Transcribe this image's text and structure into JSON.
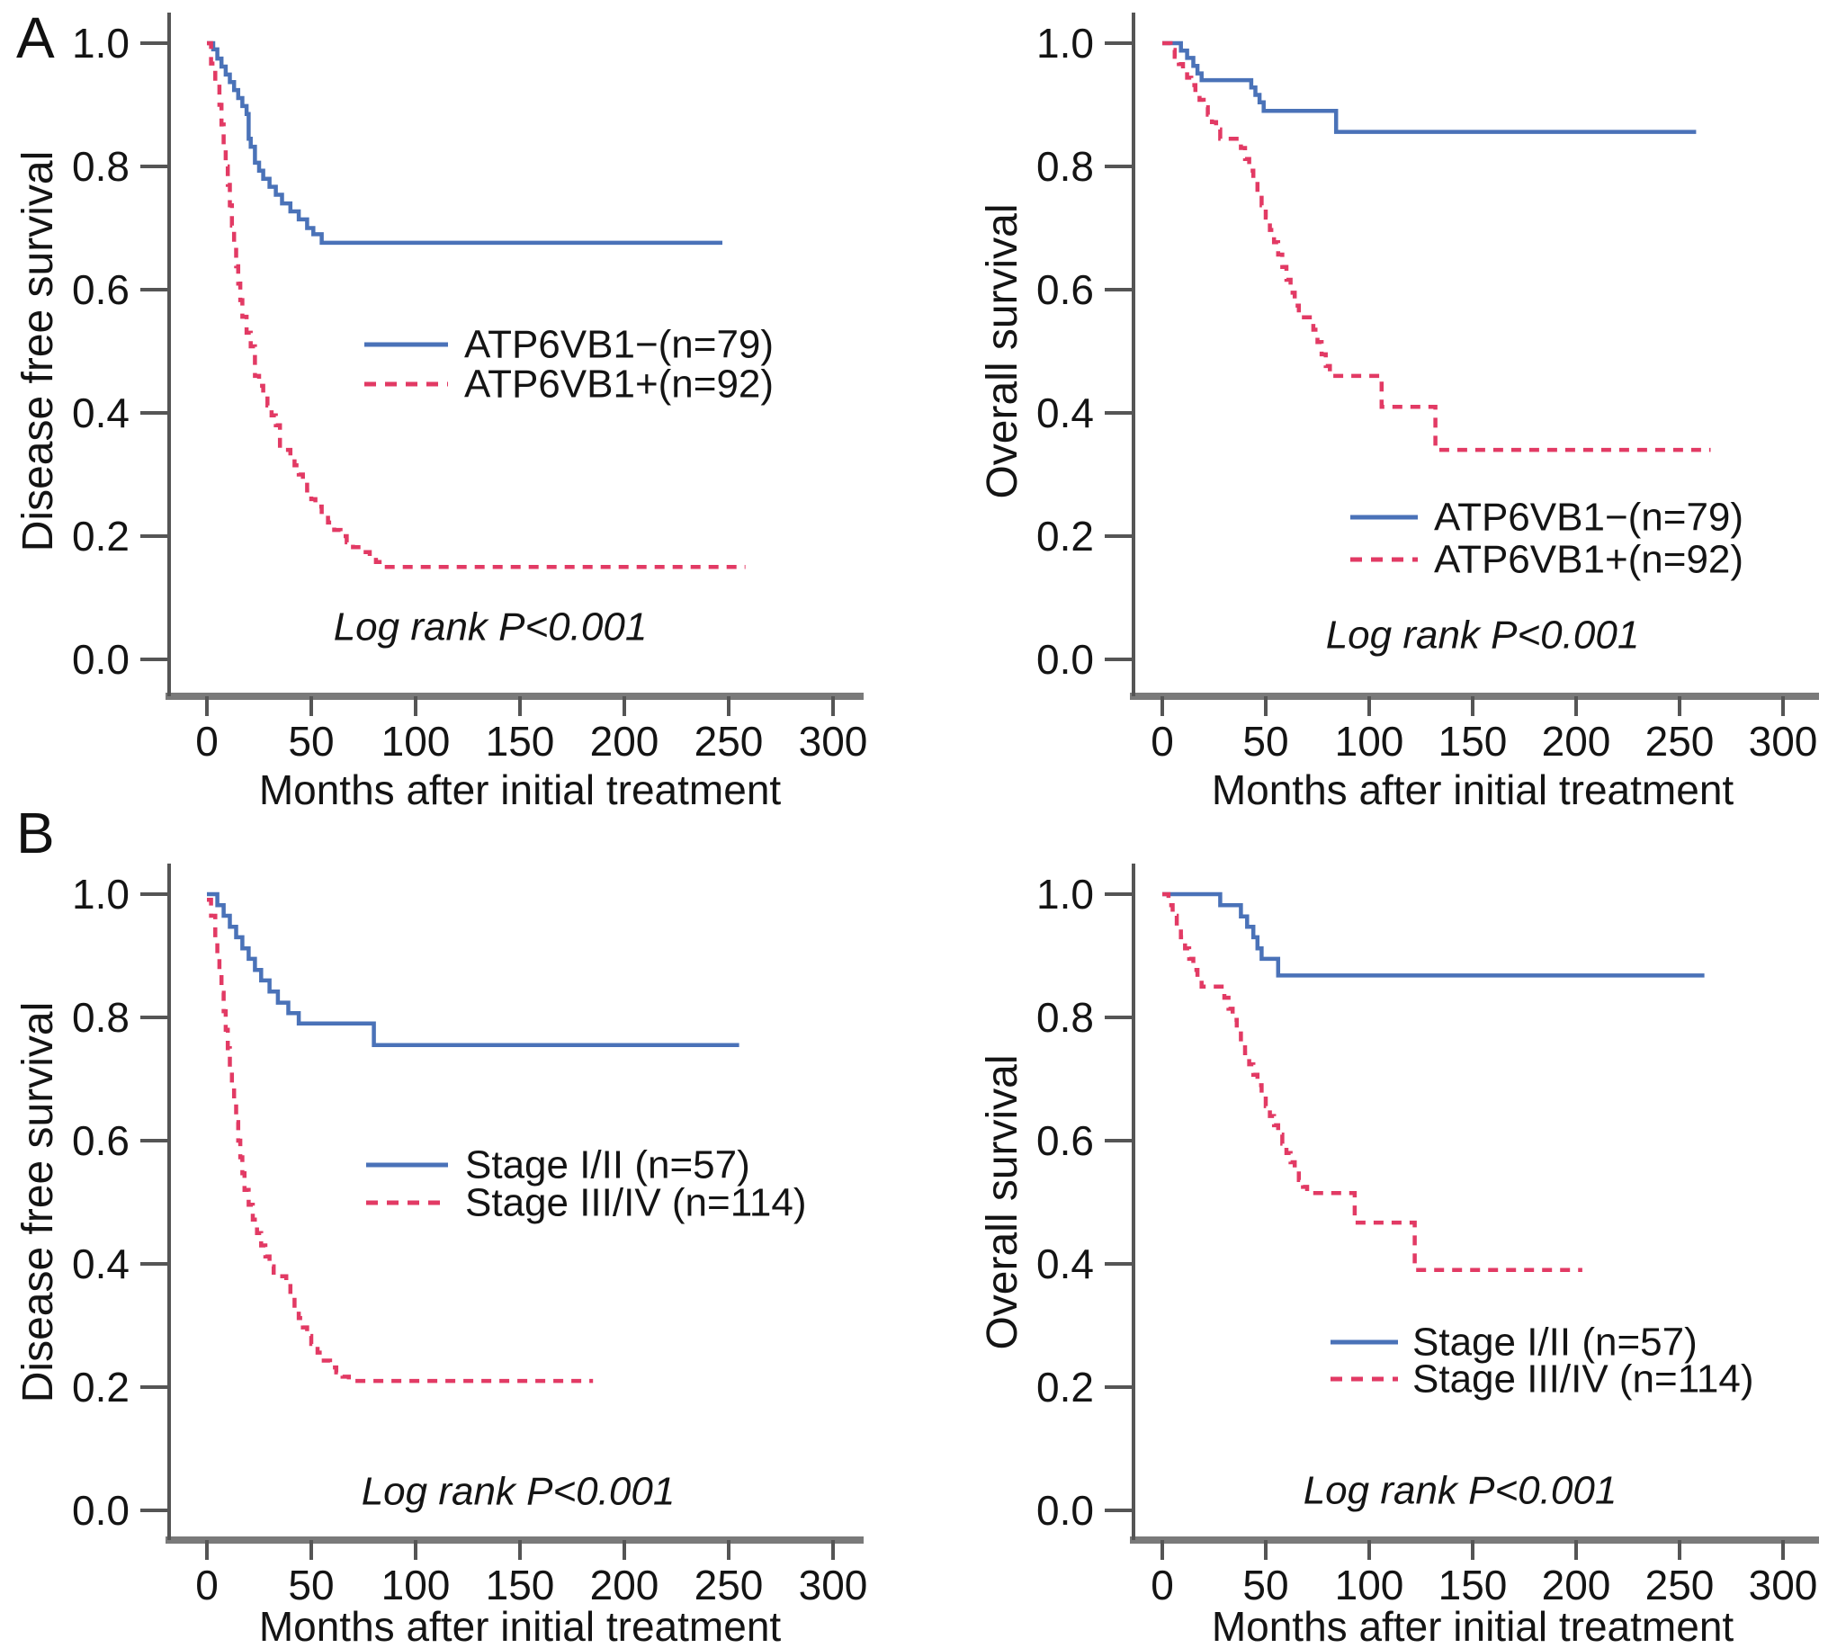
{
  "panels": [
    {
      "label": "A"
    },
    {
      "label": "B"
    }
  ],
  "colors": {
    "blue": "#4a72b8",
    "red": "#e23a64",
    "axis_dark": "#555555",
    "axis_gray": "#7a7a7a",
    "text": "#141414"
  },
  "chart_data": [
    {
      "type": "line",
      "subtype": "kaplan-meier",
      "panel": "A",
      "position": "left",
      "ylabel": "Disease free survival",
      "xlabel": "Months after initial treatment",
      "xticks": [
        0,
        50,
        100,
        150,
        200,
        250,
        300
      ],
      "yticks": [
        0.0,
        0.2,
        0.4,
        0.6,
        0.8,
        1.0
      ],
      "xlim": [
        0,
        300
      ],
      "ylim": [
        0,
        1
      ],
      "grid": false,
      "annotation": "Log rank P<0.001",
      "series": [
        {
          "name": "ATP6VB1−(n=79)",
          "color": "blue",
          "style": "solid",
          "end_x": 247,
          "steps": [
            [
              0,
              1.0
            ],
            [
              3,
              0.99
            ],
            [
              5,
              0.975
            ],
            [
              7,
              0.962
            ],
            [
              9,
              0.949
            ],
            [
              11,
              0.937
            ],
            [
              13,
              0.924
            ],
            [
              15,
              0.911
            ],
            [
              17,
              0.898
            ],
            [
              19,
              0.885
            ],
            [
              20,
              0.845
            ],
            [
              21,
              0.832
            ],
            [
              23,
              0.806
            ],
            [
              25,
              0.793
            ],
            [
              27,
              0.78
            ],
            [
              30,
              0.767
            ],
            [
              33,
              0.754
            ],
            [
              36,
              0.74
            ],
            [
              40,
              0.727
            ],
            [
              44,
              0.714
            ],
            [
              48,
              0.7
            ],
            [
              51,
              0.69
            ],
            [
              55,
              0.676
            ]
          ]
        },
        {
          "name": "ATP6VB1+(n=92)",
          "color": "red",
          "style": "dashed",
          "end_x": 258,
          "steps": [
            [
              0,
              1.0
            ],
            [
              2,
              0.967
            ],
            [
              4,
              0.934
            ],
            [
              6,
              0.9
            ],
            [
              7,
              0.868
            ],
            [
              8,
              0.835
            ],
            [
              9,
              0.8
            ],
            [
              10,
              0.77
            ],
            [
              11,
              0.737
            ],
            [
              12,
              0.704
            ],
            [
              13,
              0.671
            ],
            [
              14,
              0.638
            ],
            [
              15,
              0.61
            ],
            [
              16,
              0.583
            ],
            [
              17,
              0.556
            ],
            [
              19,
              0.53
            ],
            [
              21,
              0.508
            ],
            [
              23,
              0.46
            ],
            [
              25,
              0.444
            ],
            [
              27,
              0.428
            ],
            [
              29,
              0.412
            ],
            [
              31,
              0.396
            ],
            [
              33,
              0.38
            ],
            [
              35,
              0.34
            ],
            [
              40,
              0.33
            ],
            [
              42,
              0.315
            ],
            [
              44,
              0.3
            ],
            [
              46,
              0.287
            ],
            [
              48,
              0.274
            ],
            [
              50,
              0.26
            ],
            [
              52,
              0.248
            ],
            [
              55,
              0.235
            ],
            [
              58,
              0.222
            ],
            [
              61,
              0.21
            ],
            [
              64,
              0.2
            ],
            [
              67,
              0.19
            ],
            [
              70,
              0.182
            ],
            [
              74,
              0.174
            ],
            [
              78,
              0.166
            ],
            [
              81,
              0.158
            ],
            [
              84,
              0.15
            ]
          ]
        }
      ]
    },
    {
      "type": "line",
      "subtype": "kaplan-meier",
      "panel": "A",
      "position": "right",
      "ylabel": "Overall survival",
      "xlabel": "Months after initial treatment",
      "xticks": [
        0,
        50,
        100,
        150,
        200,
        250,
        300
      ],
      "yticks": [
        0.0,
        0.2,
        0.4,
        0.6,
        0.8,
        1.0
      ],
      "xlim": [
        0,
        300
      ],
      "ylim": [
        0,
        1
      ],
      "grid": false,
      "annotation": "Log rank P<0.001",
      "series": [
        {
          "name": "ATP6VB1−(n=79)",
          "color": "blue",
          "style": "solid",
          "end_x": 258,
          "steps": [
            [
              0,
              1.0
            ],
            [
              9,
              0.988
            ],
            [
              12,
              0.976
            ],
            [
              15,
              0.963
            ],
            [
              17,
              0.951
            ],
            [
              19,
              0.94
            ],
            [
              43,
              0.928
            ],
            [
              45,
              0.916
            ],
            [
              47,
              0.904
            ],
            [
              49,
              0.89
            ],
            [
              84,
              0.856
            ]
          ]
        },
        {
          "name": "ATP6VB1+(n=92)",
          "color": "red",
          "style": "dashed",
          "end_x": 265,
          "steps": [
            [
              0,
              1.0
            ],
            [
              4,
              0.989
            ],
            [
              6,
              0.978
            ],
            [
              8,
              0.966
            ],
            [
              10,
              0.955
            ],
            [
              12,
              0.944
            ],
            [
              14,
              0.932
            ],
            [
              16,
              0.92
            ],
            [
              18,
              0.908
            ],
            [
              20,
              0.896
            ],
            [
              22,
              0.884
            ],
            [
              24,
              0.872
            ],
            [
              26,
              0.86
            ],
            [
              28,
              0.845
            ],
            [
              38,
              0.83
            ],
            [
              40,
              0.812
            ],
            [
              42,
              0.793
            ],
            [
              44,
              0.775
            ],
            [
              46,
              0.756
            ],
            [
              48,
              0.737
            ],
            [
              50,
              0.717
            ],
            [
              52,
              0.697
            ],
            [
              54,
              0.677
            ],
            [
              56,
              0.657
            ],
            [
              58,
              0.637
            ],
            [
              60,
              0.616
            ],
            [
              62,
              0.595
            ],
            [
              64,
              0.574
            ],
            [
              66,
              0.555
            ],
            [
              73,
              0.535
            ],
            [
              75,
              0.515
            ],
            [
              77,
              0.495
            ],
            [
              79,
              0.476
            ],
            [
              81,
              0.46
            ],
            [
              106,
              0.41
            ],
            [
              132,
              0.34
            ]
          ]
        }
      ]
    },
    {
      "type": "line",
      "subtype": "kaplan-meier",
      "panel": "B",
      "position": "left",
      "ylabel": "Disease free survival",
      "xlabel": "Months after initial treatment",
      "xticks": [
        0,
        50,
        100,
        150,
        200,
        250,
        300
      ],
      "yticks": [
        0.0,
        0.2,
        0.4,
        0.6,
        0.8,
        1.0
      ],
      "xlim": [
        0,
        300
      ],
      "ylim": [
        0,
        1
      ],
      "grid": false,
      "annotation": "Log rank P<0.001",
      "series": [
        {
          "name": "Stage I/II (n=57)",
          "color": "blue",
          "style": "solid",
          "end_x": 255,
          "steps": [
            [
              0,
              1.0
            ],
            [
              5,
              0.982
            ],
            [
              8,
              0.965
            ],
            [
              11,
              0.947
            ],
            [
              14,
              0.93
            ],
            [
              17,
              0.912
            ],
            [
              20,
              0.895
            ],
            [
              23,
              0.877
            ],
            [
              26,
              0.86
            ],
            [
              30,
              0.842
            ],
            [
              34,
              0.824
            ],
            [
              39,
              0.807
            ],
            [
              44,
              0.79
            ],
            [
              80,
              0.755
            ]
          ]
        },
        {
          "name": "Stage III/IV (n=114)",
          "color": "red",
          "style": "dashed",
          "end_x": 185,
          "steps": [
            [
              0,
              0.991
            ],
            [
              2,
              0.965
            ],
            [
              4,
              0.93
            ],
            [
              5,
              0.9
            ],
            [
              6,
              0.87
            ],
            [
              7,
              0.84
            ],
            [
              8,
              0.81
            ],
            [
              9,
              0.78
            ],
            [
              10,
              0.75
            ],
            [
              11,
              0.72
            ],
            [
              12,
              0.69
            ],
            [
              13,
              0.66
            ],
            [
              14,
              0.63
            ],
            [
              15,
              0.6
            ],
            [
              16,
              0.573
            ],
            [
              17,
              0.547
            ],
            [
              18,
              0.52
            ],
            [
              20,
              0.496
            ],
            [
              22,
              0.472
            ],
            [
              24,
              0.45
            ],
            [
              26,
              0.43
            ],
            [
              28,
              0.412
            ],
            [
              30,
              0.396
            ],
            [
              32,
              0.38
            ],
            [
              38,
              0.372
            ],
            [
              40,
              0.345
            ],
            [
              42,
              0.328
            ],
            [
              44,
              0.312
            ],
            [
              46,
              0.297
            ],
            [
              48,
              0.283
            ],
            [
              50,
              0.27
            ],
            [
              53,
              0.256
            ],
            [
              56,
              0.243
            ],
            [
              59,
              0.232
            ],
            [
              62,
              0.224
            ],
            [
              65,
              0.217
            ],
            [
              68,
              0.21
            ]
          ]
        }
      ]
    },
    {
      "type": "line",
      "subtype": "kaplan-meier",
      "panel": "B",
      "position": "right",
      "ylabel": "Overall survival",
      "xlabel": "Months after initial treatment",
      "xticks": [
        0,
        50,
        100,
        150,
        200,
        250,
        300
      ],
      "yticks": [
        0.0,
        0.2,
        0.4,
        0.6,
        0.8,
        1.0
      ],
      "xlim": [
        0,
        300
      ],
      "ylim": [
        0,
        1
      ],
      "grid": false,
      "annotation": "Log rank P<0.001",
      "series": [
        {
          "name": "Stage I/II (n=57)",
          "color": "blue",
          "style": "solid",
          "end_x": 262,
          "steps": [
            [
              0,
              1.0
            ],
            [
              28,
              0.982
            ],
            [
              38,
              0.964
            ],
            [
              41,
              0.947
            ],
            [
              44,
              0.93
            ],
            [
              46,
              0.912
            ],
            [
              48,
              0.895
            ],
            [
              56,
              0.868
            ]
          ]
        },
        {
          "name": "Stage III/IV (n=114)",
          "color": "red",
          "style": "dashed",
          "end_x": 203,
          "steps": [
            [
              0,
              1.0
            ],
            [
              3,
              0.982
            ],
            [
              5,
              0.965
            ],
            [
              7,
              0.947
            ],
            [
              9,
              0.93
            ],
            [
              11,
              0.912
            ],
            [
              13,
              0.895
            ],
            [
              15,
              0.877
            ],
            [
              17,
              0.862
            ],
            [
              19,
              0.85
            ],
            [
              30,
              0.832
            ],
            [
              32,
              0.814
            ],
            [
              34,
              0.796
            ],
            [
              36,
              0.778
            ],
            [
              38,
              0.76
            ],
            [
              40,
              0.742
            ],
            [
              42,
              0.724
            ],
            [
              44,
              0.707
            ],
            [
              46,
              0.69
            ],
            [
              48,
              0.673
            ],
            [
              50,
              0.656
            ],
            [
              52,
              0.64
            ],
            [
              54,
              0.625
            ],
            [
              56,
              0.61
            ],
            [
              58,
              0.595
            ],
            [
              60,
              0.58
            ],
            [
              62,
              0.565
            ],
            [
              64,
              0.55
            ],
            [
              66,
              0.536
            ],
            [
              68,
              0.525
            ],
            [
              70,
              0.515
            ],
            [
              93,
              0.467
            ],
            [
              122,
              0.39
            ]
          ]
        }
      ]
    }
  ]
}
